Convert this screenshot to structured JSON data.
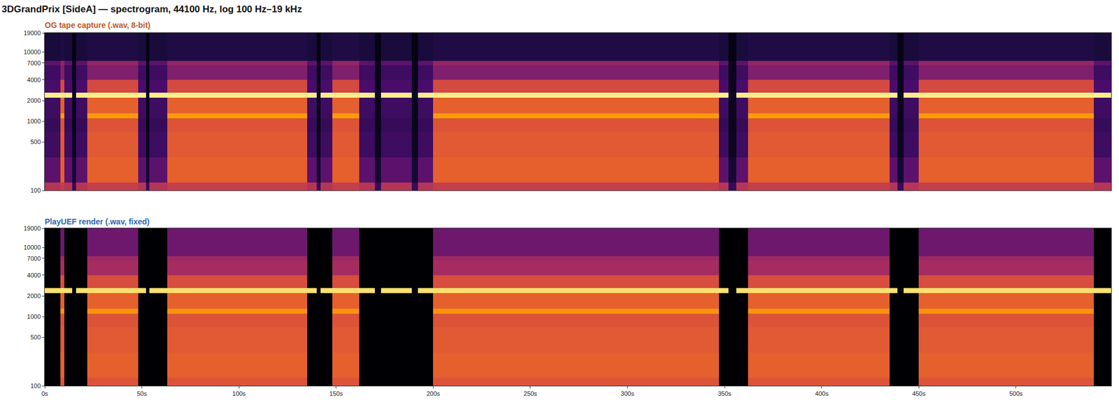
{
  "title": "3DGrandPrix [SideA] — spectrogram, 44100 Hz, log 100 Hz–19 kHz",
  "chart_data": [
    {
      "type": "heatmap",
      "title": "OG tape capture (.wav, 8-bit)",
      "x_edges": [
        0,
        8,
        10,
        14,
        16,
        22,
        48,
        52,
        54,
        63,
        135,
        140,
        142,
        148,
        162,
        170,
        173,
        189,
        192,
        200,
        347,
        352,
        356,
        362,
        435,
        439,
        442,
        450,
        540,
        549
      ],
      "y_edges": [
        100,
        130,
        300,
        700,
        1100,
        1300,
        2200,
        2600,
        4000,
        6500,
        7500,
        19000
      ],
      "cells": [
        [
          55,
          60,
          55,
          20,
          55,
          60,
          55,
          20,
          55,
          60,
          55,
          20,
          55,
          60,
          55,
          20,
          55,
          20,
          55,
          60,
          55,
          20,
          55,
          60,
          55,
          20,
          55,
          60,
          55
        ],
        [
          30,
          72,
          30,
          10,
          30,
          72,
          30,
          10,
          30,
          72,
          30,
          10,
          30,
          72,
          30,
          10,
          30,
          10,
          30,
          72,
          30,
          10,
          30,
          72,
          30,
          10,
          30,
          72,
          30
        ],
        [
          22,
          70,
          22,
          6,
          22,
          70,
          22,
          6,
          22,
          70,
          22,
          6,
          22,
          70,
          22,
          6,
          22,
          6,
          22,
          70,
          22,
          6,
          22,
          70,
          22,
          6,
          22,
          70,
          22
        ],
        [
          20,
          68,
          20,
          5,
          20,
          68,
          20,
          5,
          20,
          68,
          20,
          5,
          20,
          68,
          20,
          5,
          20,
          5,
          20,
          68,
          20,
          5,
          20,
          68,
          20,
          5,
          20,
          68,
          20
        ],
        [
          22,
          88,
          22,
          5,
          22,
          88,
          22,
          5,
          22,
          88,
          22,
          5,
          22,
          88,
          22,
          5,
          22,
          5,
          22,
          88,
          22,
          5,
          22,
          88,
          22,
          5,
          22,
          88,
          22
        ],
        [
          22,
          72,
          22,
          5,
          22,
          72,
          22,
          5,
          22,
          72,
          22,
          5,
          22,
          72,
          22,
          5,
          22,
          5,
          22,
          72,
          22,
          5,
          22,
          72,
          22,
          5,
          22,
          72,
          22
        ],
        [
          98,
          98,
          98,
          8,
          98,
          98,
          98,
          8,
          98,
          98,
          98,
          8,
          98,
          98,
          98,
          8,
          98,
          8,
          98,
          98,
          98,
          8,
          98,
          98,
          98,
          8,
          98,
          98,
          98
        ],
        [
          25,
          65,
          25,
          5,
          25,
          65,
          25,
          5,
          25,
          65,
          25,
          5,
          25,
          65,
          25,
          5,
          25,
          5,
          25,
          65,
          25,
          5,
          25,
          65,
          25,
          5,
          25,
          65,
          25
        ],
        [
          22,
          40,
          22,
          5,
          22,
          40,
          22,
          5,
          22,
          40,
          22,
          5,
          22,
          40,
          22,
          5,
          22,
          5,
          22,
          40,
          22,
          5,
          22,
          40,
          22,
          5,
          22,
          40,
          22
        ],
        [
          30,
          45,
          30,
          5,
          30,
          45,
          30,
          5,
          30,
          45,
          30,
          5,
          30,
          45,
          30,
          5,
          30,
          5,
          30,
          45,
          30,
          5,
          30,
          45,
          30,
          5,
          30,
          45,
          30
        ],
        [
          12,
          14,
          12,
          3,
          12,
          14,
          12,
          3,
          12,
          14,
          12,
          3,
          12,
          14,
          12,
          3,
          12,
          3,
          12,
          14,
          12,
          3,
          12,
          14,
          12,
          3,
          12,
          14,
          12
        ]
      ],
      "zlim": [
        0,
        100
      ],
      "xlim": [
        0,
        549
      ],
      "ylim": [
        100,
        19000
      ],
      "yticks": [
        100,
        500,
        1000,
        2000,
        4000,
        7000,
        10000,
        19000
      ],
      "log": "y",
      "grid": false,
      "tick_labels": "y"
    },
    {
      "type": "heatmap",
      "title": "PlayUEF render (.wav, fixed)",
      "x_edges": [
        0,
        8,
        10,
        14,
        16,
        22,
        48,
        52,
        54,
        63,
        135,
        140,
        142,
        148,
        162,
        170,
        173,
        189,
        192,
        200,
        347,
        352,
        356,
        362,
        435,
        439,
        442,
        450,
        540,
        549
      ],
      "y_edges": [
        100,
        130,
        300,
        700,
        1100,
        1300,
        2200,
        2600,
        4000,
        6500,
        7500,
        19000
      ],
      "cells": [
        [
          0,
          68,
          0,
          0,
          0,
          68,
          0,
          0,
          0,
          68,
          0,
          0,
          0,
          68,
          0,
          0,
          0,
          0,
          0,
          68,
          0,
          0,
          0,
          68,
          0,
          0,
          0,
          68,
          0
        ],
        [
          0,
          72,
          0,
          0,
          0,
          72,
          0,
          0,
          0,
          72,
          0,
          0,
          0,
          72,
          0,
          0,
          0,
          0,
          0,
          72,
          0,
          0,
          0,
          72,
          0,
          0,
          0,
          72,
          0
        ],
        [
          0,
          70,
          0,
          0,
          0,
          70,
          0,
          0,
          0,
          70,
          0,
          0,
          0,
          70,
          0,
          0,
          0,
          0,
          0,
          70,
          0,
          0,
          0,
          70,
          0,
          0,
          0,
          70,
          0
        ],
        [
          0,
          68,
          0,
          0,
          0,
          68,
          0,
          0,
          0,
          68,
          0,
          0,
          0,
          68,
          0,
          0,
          0,
          0,
          0,
          68,
          0,
          0,
          0,
          68,
          0,
          0,
          0,
          68,
          0
        ],
        [
          0,
          86,
          0,
          0,
          0,
          86,
          0,
          0,
          0,
          86,
          0,
          0,
          0,
          86,
          0,
          0,
          0,
          0,
          0,
          86,
          0,
          0,
          0,
          86,
          0,
          0,
          0,
          86,
          0
        ],
        [
          0,
          72,
          0,
          0,
          0,
          72,
          0,
          0,
          0,
          72,
          0,
          0,
          0,
          72,
          0,
          0,
          0,
          0,
          0,
          72,
          0,
          0,
          0,
          72,
          0,
          0,
          0,
          72,
          0
        ],
        [
          96,
          96,
          96,
          0,
          96,
          96,
          96,
          0,
          96,
          96,
          96,
          0,
          96,
          96,
          96,
          0,
          96,
          0,
          96,
          96,
          96,
          0,
          96,
          96,
          96,
          0,
          96,
          96,
          96
        ],
        [
          0,
          66,
          0,
          0,
          0,
          66,
          0,
          0,
          0,
          66,
          0,
          0,
          0,
          66,
          0,
          0,
          0,
          0,
          0,
          66,
          0,
          0,
          0,
          66,
          0,
          0,
          0,
          66,
          0
        ],
        [
          0,
          50,
          0,
          0,
          0,
          50,
          0,
          0,
          0,
          50,
          0,
          0,
          0,
          50,
          0,
          0,
          0,
          0,
          0,
          50,
          0,
          0,
          0,
          50,
          0,
          0,
          0,
          50,
          0
        ],
        [
          0,
          48,
          0,
          0,
          0,
          48,
          0,
          0,
          0,
          48,
          0,
          0,
          0,
          48,
          0,
          0,
          0,
          0,
          0,
          48,
          0,
          0,
          0,
          48,
          0,
          0,
          0,
          48,
          0
        ],
        [
          0,
          35,
          0,
          0,
          0,
          35,
          0,
          0,
          0,
          35,
          0,
          0,
          0,
          35,
          0,
          0,
          0,
          0,
          0,
          35,
          0,
          0,
          0,
          35,
          0,
          0,
          0,
          35,
          0
        ]
      ],
      "zlim": [
        0,
        100
      ],
      "xlim": [
        0,
        549
      ],
      "ylim": [
        100,
        19000
      ],
      "xticks": [
        {
          "value": 0,
          "label": "0s"
        },
        {
          "value": 50,
          "label": "50s"
        },
        {
          "value": 100,
          "label": "100s"
        },
        {
          "value": 150,
          "label": "150s"
        },
        {
          "value": 200,
          "label": "200s"
        },
        {
          "value": 250,
          "label": "250s"
        },
        {
          "value": 300,
          "label": "300s"
        },
        {
          "value": 350,
          "label": "350s"
        },
        {
          "value": 400,
          "label": "400s"
        },
        {
          "value": 450,
          "label": "450s"
        },
        {
          "value": 500,
          "label": "500s"
        }
      ],
      "yticks": [
        100,
        500,
        1000,
        2000,
        4000,
        7000,
        10000,
        19000
      ],
      "log": "y",
      "grid": false
    }
  ]
}
